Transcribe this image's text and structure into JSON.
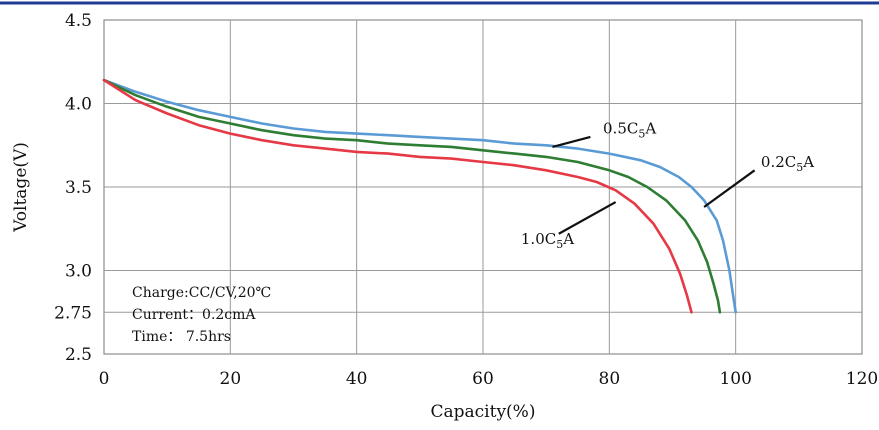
{
  "chart_data": {
    "type": "line",
    "xlabel": "Capacity(%)",
    "ylabel": "Voltage(V)",
    "xlim": [
      0,
      120
    ],
    "ylim": [
      2.5,
      4.5
    ],
    "x_ticks": [
      {
        "value": 0,
        "label": "0"
      },
      {
        "value": 20,
        "label": "20"
      },
      {
        "value": 40,
        "label": "40"
      },
      {
        "value": 60,
        "label": "60"
      },
      {
        "value": 80,
        "label": "80"
      },
      {
        "value": 100,
        "label": "100"
      },
      {
        "value": 120,
        "label": "120"
      }
    ],
    "y_ticks": [
      {
        "value": 2.5,
        "label": "2.5"
      },
      {
        "value": 2.75,
        "label": "2.75"
      },
      {
        "value": 3.0,
        "label": "3.0"
      },
      {
        "value": 3.5,
        "label": "3.5"
      },
      {
        "value": 4.0,
        "label": "4.0"
      },
      {
        "value": 4.5,
        "label": "4.5"
      }
    ],
    "grid": true,
    "series": [
      {
        "name": "0.5C5A",
        "label_main": "0.5C",
        "label_sub": "5",
        "label_tail": "A",
        "color": "#5b9bd5",
        "label_x": 79,
        "label_y": 3.82,
        "leader": [
          [
            71,
            3.74
          ],
          [
            77,
            3.8
          ]
        ],
        "points": [
          [
            0,
            4.14
          ],
          [
            5,
            4.07
          ],
          [
            10,
            4.01
          ],
          [
            15,
            3.96
          ],
          [
            20,
            3.92
          ],
          [
            25,
            3.88
          ],
          [
            30,
            3.85
          ],
          [
            35,
            3.83
          ],
          [
            40,
            3.82
          ],
          [
            45,
            3.81
          ],
          [
            50,
            3.8
          ],
          [
            55,
            3.79
          ],
          [
            60,
            3.78
          ],
          [
            65,
            3.76
          ],
          [
            70,
            3.75
          ],
          [
            75,
            3.73
          ],
          [
            80,
            3.7
          ],
          [
            85,
            3.66
          ],
          [
            88,
            3.62
          ],
          [
            91,
            3.56
          ],
          [
            93,
            3.5
          ],
          [
            95,
            3.42
          ],
          [
            97,
            3.3
          ],
          [
            98,
            3.18
          ],
          [
            99,
            3.0
          ],
          [
            99.6,
            2.85
          ],
          [
            100,
            2.75
          ]
        ]
      },
      {
        "name": "0.2C5A",
        "label_main": "0.2C",
        "label_sub": "5",
        "label_tail": "A",
        "color": "#2e7d32",
        "label_x": 104,
        "label_y": 3.62,
        "leader": [
          [
            95,
            3.38
          ],
          [
            103,
            3.6
          ]
        ],
        "points": [
          [
            0,
            4.14
          ],
          [
            5,
            4.05
          ],
          [
            10,
            3.98
          ],
          [
            15,
            3.92
          ],
          [
            20,
            3.88
          ],
          [
            25,
            3.84
          ],
          [
            30,
            3.81
          ],
          [
            35,
            3.79
          ],
          [
            40,
            3.78
          ],
          [
            45,
            3.76
          ],
          [
            50,
            3.75
          ],
          [
            55,
            3.74
          ],
          [
            60,
            3.72
          ],
          [
            65,
            3.7
          ],
          [
            70,
            3.68
          ],
          [
            75,
            3.65
          ],
          [
            80,
            3.6
          ],
          [
            83,
            3.56
          ],
          [
            86,
            3.5
          ],
          [
            89,
            3.42
          ],
          [
            92,
            3.3
          ],
          [
            94,
            3.18
          ],
          [
            95.5,
            3.05
          ],
          [
            96.5,
            2.92
          ],
          [
            97.2,
            2.82
          ],
          [
            97.5,
            2.75
          ]
        ]
      },
      {
        "name": "1.0C5A",
        "label_main": "1.0C",
        "label_sub": "5",
        "label_tail": "A",
        "color": "#e53945",
        "label_x": 66,
        "label_y": 3.16,
        "leader": [
          [
            72,
            3.22
          ],
          [
            81,
            3.41
          ]
        ],
        "points": [
          [
            0,
            4.14
          ],
          [
            5,
            4.02
          ],
          [
            10,
            3.94
          ],
          [
            15,
            3.87
          ],
          [
            20,
            3.82
          ],
          [
            25,
            3.78
          ],
          [
            30,
            3.75
          ],
          [
            35,
            3.73
          ],
          [
            40,
            3.71
          ],
          [
            45,
            3.7
          ],
          [
            50,
            3.68
          ],
          [
            55,
            3.67
          ],
          [
            60,
            3.65
          ],
          [
            65,
            3.63
          ],
          [
            70,
            3.6
          ],
          [
            75,
            3.56
          ],
          [
            78,
            3.53
          ],
          [
            81,
            3.48
          ],
          [
            84,
            3.4
          ],
          [
            87,
            3.28
          ],
          [
            89.5,
            3.13
          ],
          [
            91.2,
            2.98
          ],
          [
            92.3,
            2.85
          ],
          [
            93,
            2.75
          ]
        ]
      }
    ],
    "annotation": {
      "lines": [
        "Charge:CC/CV,20℃",
        "Current：0.2cmA",
        "Time：  7.5hrs"
      ]
    }
  }
}
